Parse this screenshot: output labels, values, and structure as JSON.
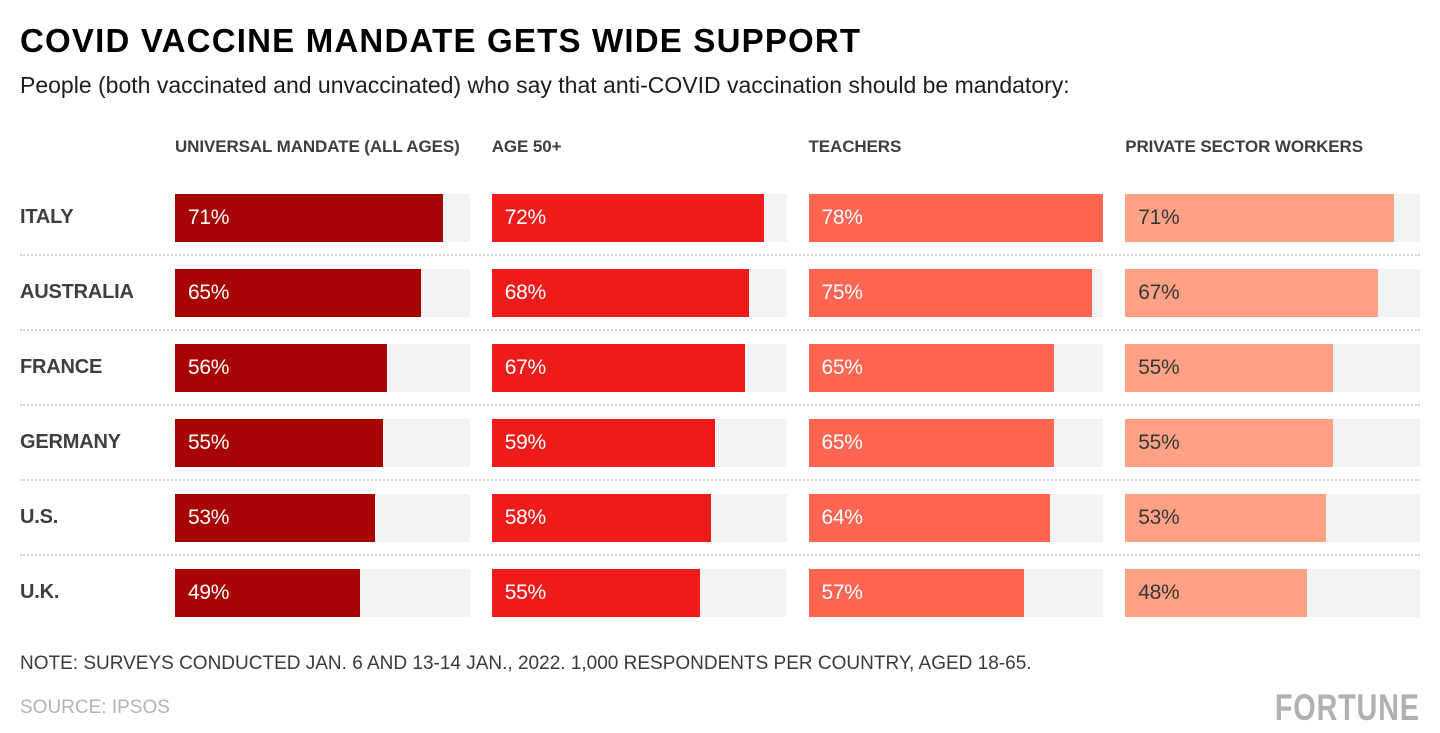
{
  "header": {
    "title": "COVID VACCINE MANDATE GETS WIDE SUPPORT",
    "subtitle": "People (both vaccinated and unvaccinated) who say that anti-COVID vaccination should be mandatory:"
  },
  "chart_data": {
    "type": "bar",
    "orientation": "horizontal",
    "categories": [
      "ITALY",
      "AUSTRALIA",
      "FRANCE",
      "GERMANY",
      "U.S.",
      "U.K."
    ],
    "series": [
      {
        "name": "UNIVERSAL MANDATE (ALL AGES)",
        "color": "#a90404",
        "label_color": "#ffffff",
        "values": [
          71,
          65,
          56,
          55,
          53,
          49
        ]
      },
      {
        "name": "AGE 50+",
        "color": "#ed1c1a",
        "label_color": "#ffffff",
        "values": [
          72,
          68,
          67,
          59,
          58,
          55
        ]
      },
      {
        "name": "TEACHERS",
        "color": "#ff6553",
        "label_color": "#ffffff",
        "values": [
          78,
          75,
          65,
          65,
          64,
          57
        ]
      },
      {
        "name": "PRIVATE SECTOR WORKERS",
        "color": "#ffa185",
        "label_color": "#373737",
        "values": [
          71,
          67,
          55,
          55,
          53,
          48
        ]
      }
    ],
    "value_suffix": "%",
    "xlim": [
      0,
      78
    ],
    "track_color": "#f3f3f1",
    "grid": false,
    "legend_position": "top-as-column-headers"
  },
  "footer": {
    "note": "NOTE: SURVEYS CONDUCTED JAN. 6 AND 13-14 JAN., 2022. 1,000 RESPONDENTS PER COUNTRY, AGED 18-65.",
    "source": "SOURCE: IPSOS",
    "brand": "FORTUNE"
  }
}
